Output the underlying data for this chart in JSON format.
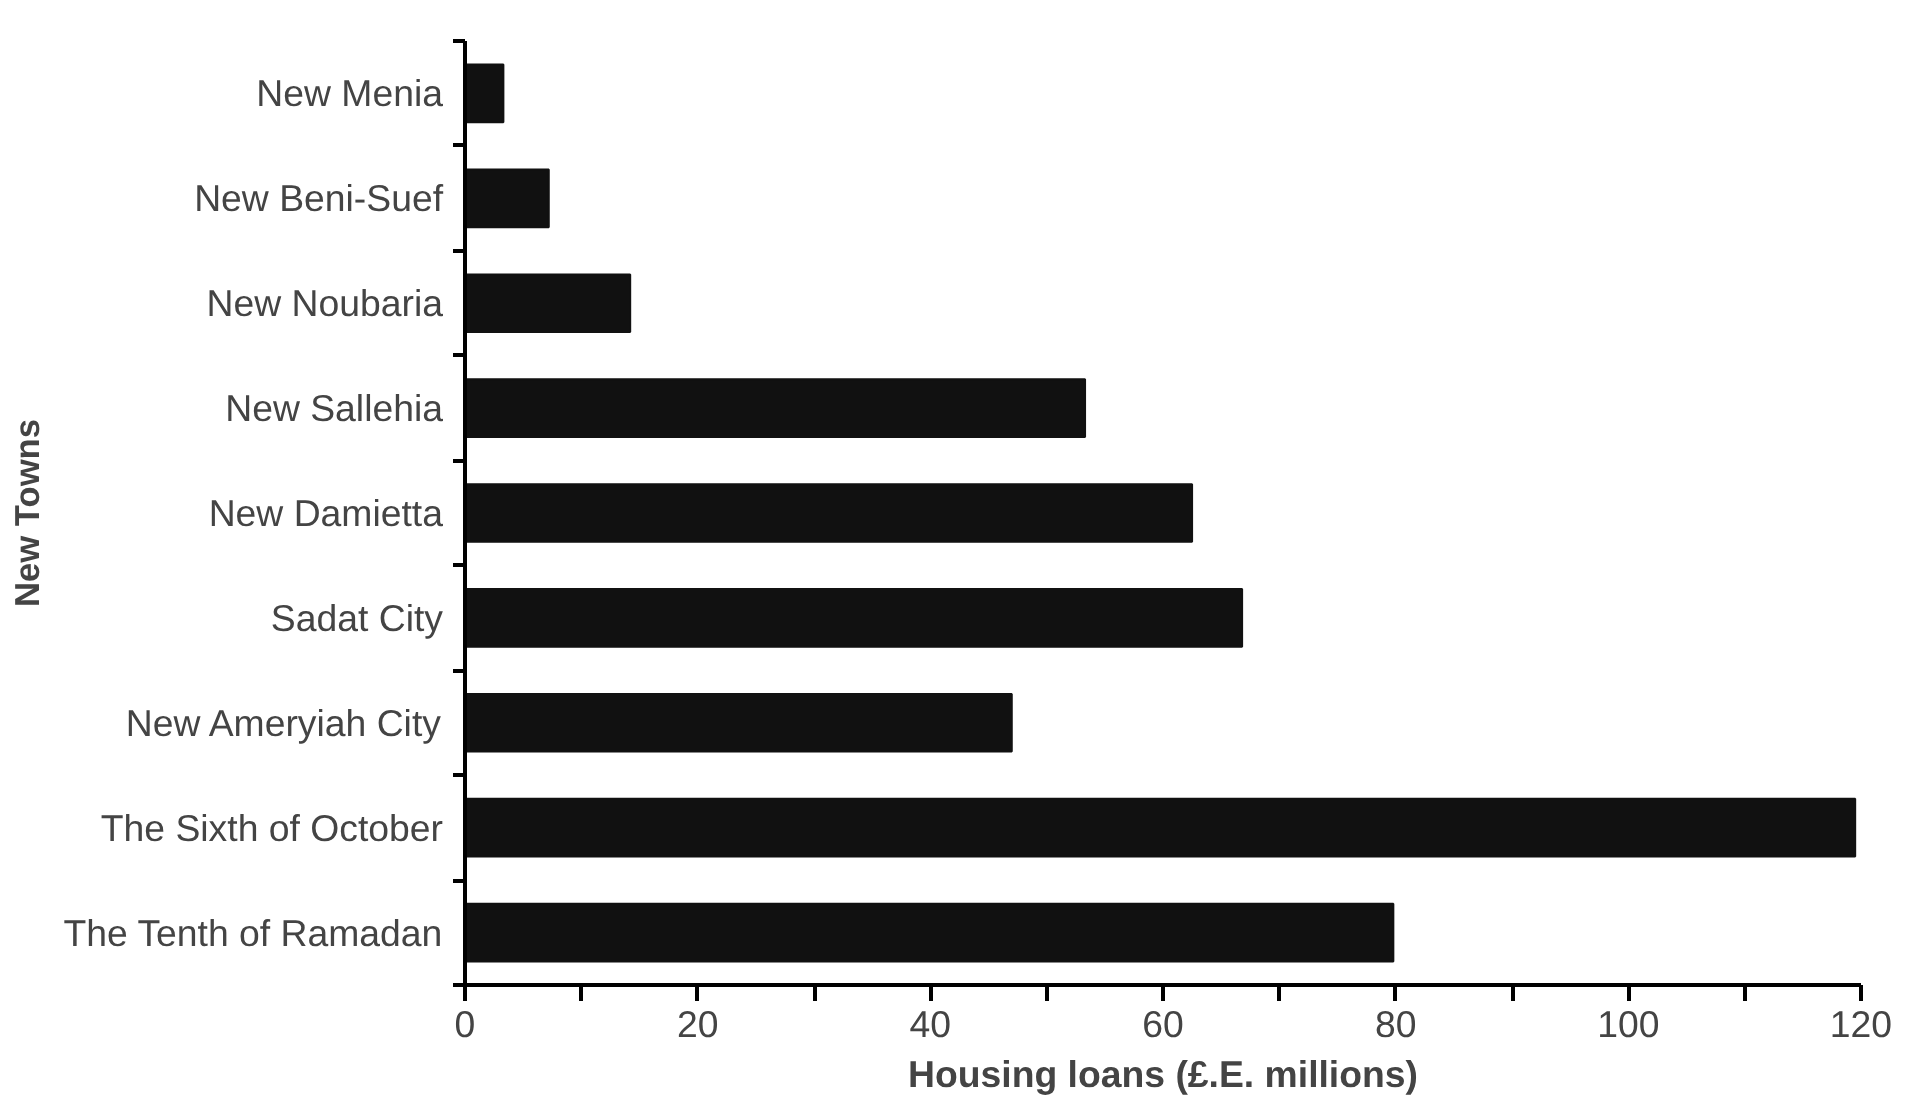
{
  "chart_data": {
    "type": "bar",
    "orientation": "horizontal",
    "xlabel": "Housing loans (£.E. millions)",
    "ylabel": "New Towns",
    "categories": [
      "New Menia",
      "New Beni-Suef",
      "New Noubaria",
      "New Sallehia",
      "New Damietta",
      "Sadat City",
      "New Ameryiah City",
      "The Sixth of October",
      "The Tenth of Ramadan"
    ],
    "values": [
      3.3,
      7.2,
      14.2,
      53.3,
      62.5,
      66.8,
      47,
      119.5,
      79.8
    ],
    "color": "#111111",
    "xlim": [
      0,
      120
    ],
    "xticks": [
      0,
      {
        "value": 10,
        "label": null
      },
      20,
      {
        "value": 30,
        "label": null
      },
      40,
      {
        "value": 50,
        "label": null
      },
      60,
      {
        "value": 70,
        "label": null
      },
      80,
      {
        "value": 90,
        "label": null
      },
      100,
      {
        "value": 110,
        "label": null
      },
      120
    ],
    "grid": false
  }
}
